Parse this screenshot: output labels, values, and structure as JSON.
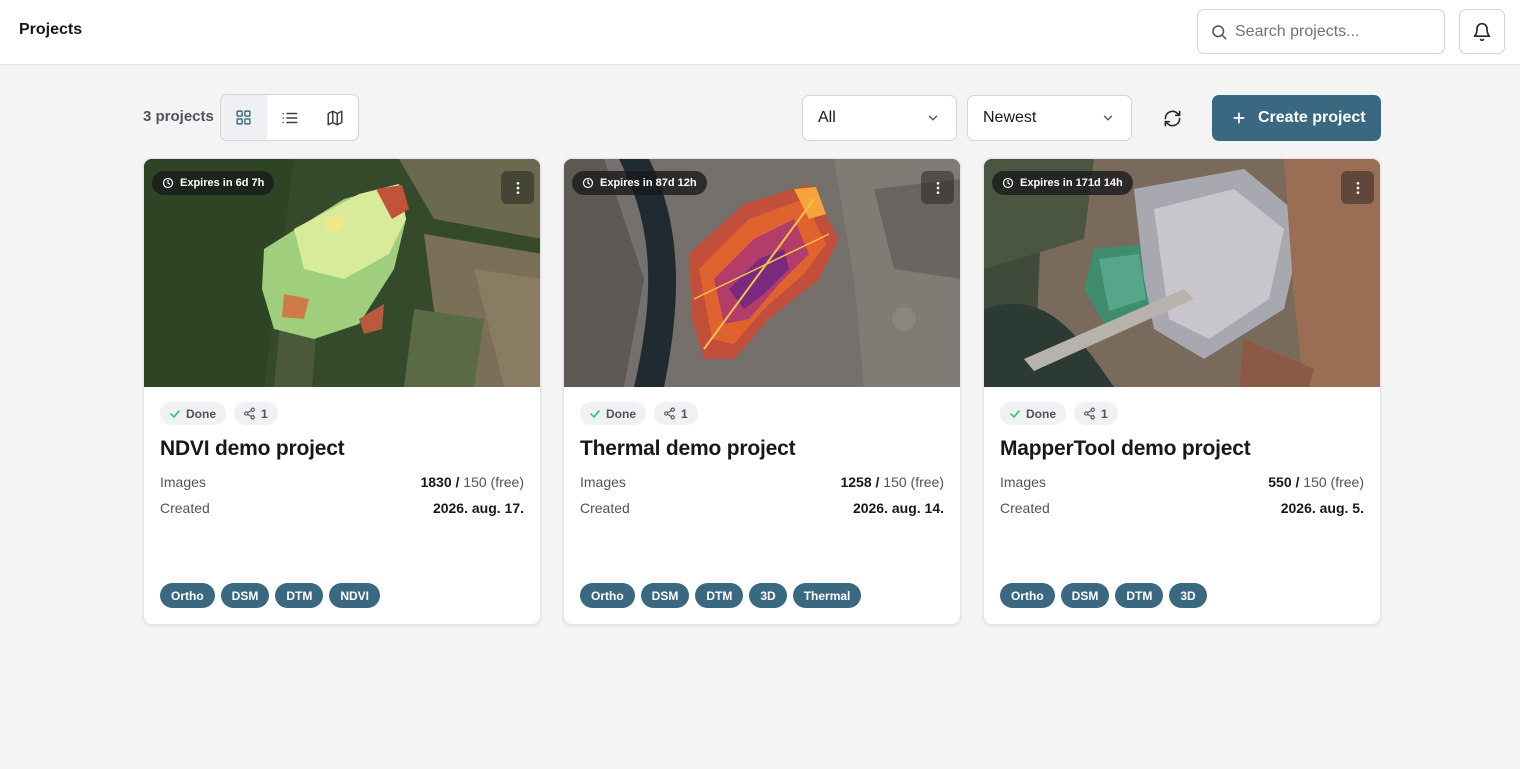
{
  "header": {
    "title": "Projects",
    "search_placeholder": "Search projects...",
    "search_value": ""
  },
  "toolbar": {
    "project_count": "3 projects",
    "view_modes": [
      "grid-icon",
      "list-icon",
      "map-icon"
    ],
    "active_view": "grid",
    "filter_value": "All",
    "sort_value": "Newest",
    "create_label": "Create project"
  },
  "colors": {
    "accent": "#3a6880",
    "background": "#f4f4f5",
    "done_check": "#22c55e"
  },
  "projects": [
    {
      "expires": "Expires in 6d 7h",
      "status": "Done",
      "shares": "1",
      "name": "NDVI demo project",
      "images_label": "Images",
      "images_used": "1830 /",
      "images_quota": "150 (free)",
      "created_label": "Created",
      "created_value": "2026. aug. 17.",
      "layers": [
        "Ortho",
        "DSM",
        "DTM",
        "NDVI"
      ]
    },
    {
      "expires": "Expires in 87d 12h",
      "status": "Done",
      "shares": "1",
      "name": "Thermal demo project",
      "images_label": "Images",
      "images_used": "1258 /",
      "images_quota": "150 (free)",
      "created_label": "Created",
      "created_value": "2026. aug. 14.",
      "layers": [
        "Ortho",
        "DSM",
        "DTM",
        "3D",
        "Thermal"
      ]
    },
    {
      "expires": "Expires in 171d 14h",
      "status": "Done",
      "shares": "1",
      "name": "MapperTool demo project",
      "images_label": "Images",
      "images_used": "550 /",
      "images_quota": "150 (free)",
      "created_label": "Created",
      "created_value": "2026. aug. 5.",
      "layers": [
        "Ortho",
        "DSM",
        "DTM",
        "3D"
      ]
    }
  ]
}
